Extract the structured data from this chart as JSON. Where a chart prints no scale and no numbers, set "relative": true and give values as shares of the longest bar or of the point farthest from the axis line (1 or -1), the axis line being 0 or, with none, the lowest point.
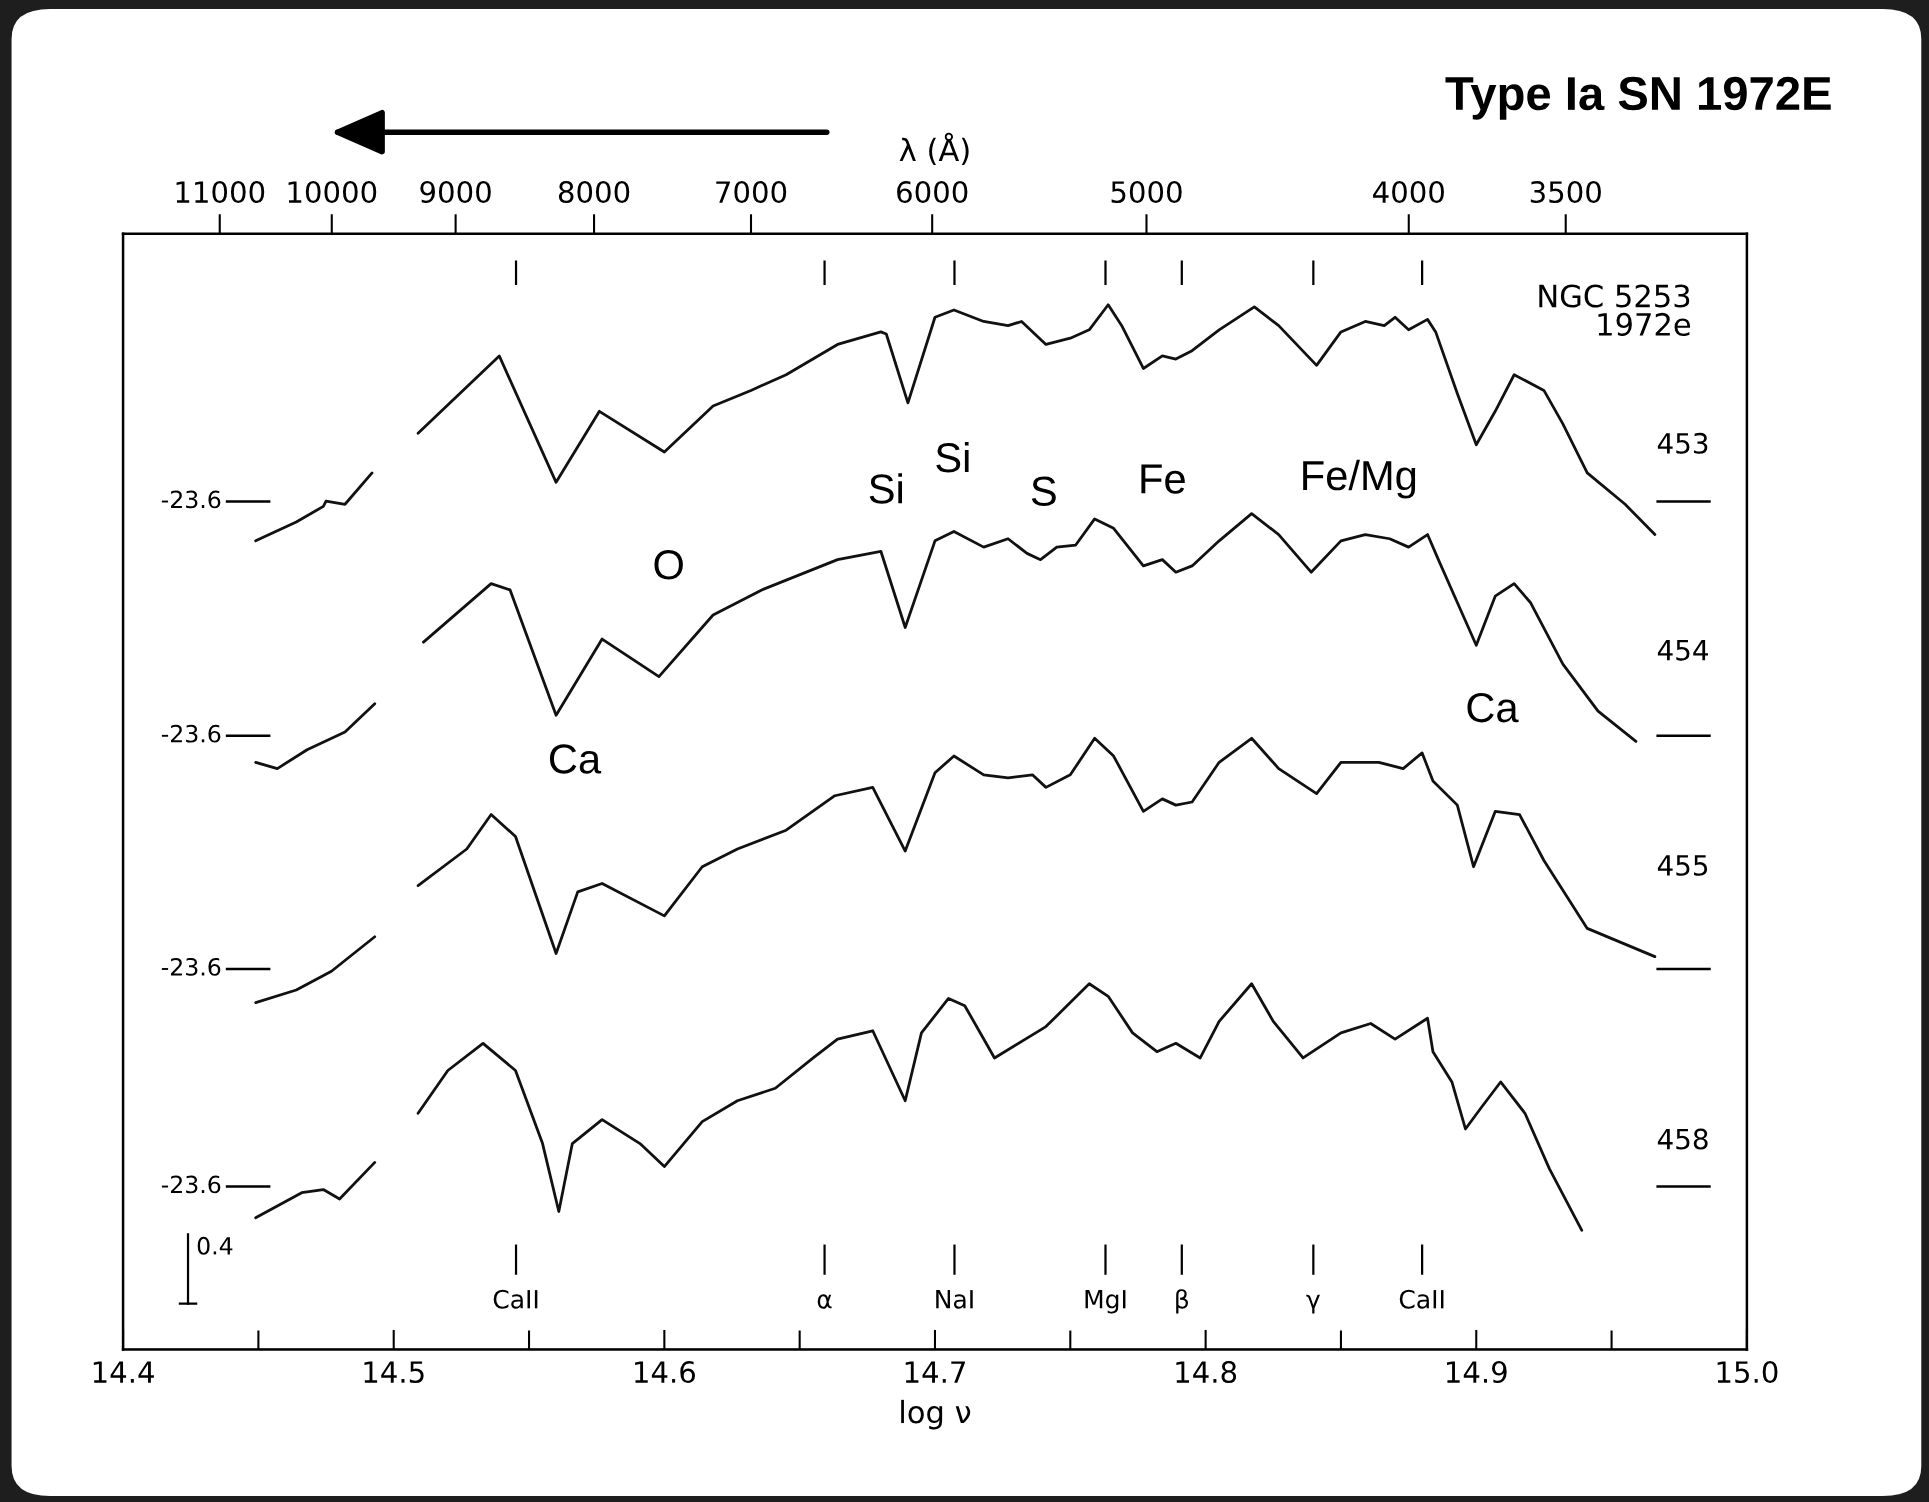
{
  "chart_data": {
    "type": "line",
    "title": "Type Ia SN 1972E",
    "xlabel": "log ν",
    "x2label": "λ (Å)",
    "relative": true,
    "xlim": [
      14.4,
      15.0
    ],
    "xticks": [
      14.4,
      14.5,
      14.6,
      14.7,
      14.8,
      14.9,
      {
        "value": 15.0,
        "label": "15.0"
      }
    ],
    "x2lim": [
      11943,
      3000
    ],
    "log": "x2",
    "x2ticks": [
      11000,
      10000,
      9000,
      8000,
      7000,
      6000,
      5000,
      4000,
      3500
    ],
    "series": [
      {
        "name": "453",
        "color": "#111111",
        "x": [
          14.449,
          14.464,
          14.474,
          14.475,
          14.482,
          14.492,
          14.5,
          14.509,
          14.539,
          14.56,
          14.576,
          14.6,
          14.618,
          14.632,
          14.645,
          14.664,
          14.68,
          14.682,
          14.69,
          14.7,
          14.707,
          14.718,
          14.727,
          14.732,
          14.741,
          14.75,
          14.757,
          14.764,
          14.769,
          14.777,
          14.784,
          14.789,
          14.795,
          14.805,
          14.818,
          14.827,
          14.841,
          14.85,
          14.859,
          14.866,
          14.87,
          14.875,
          14.882,
          14.885,
          14.893,
          14.9,
          14.907,
          14.914,
          14.925,
          14.932,
          14.941,
          14.955,
          14.966
        ],
        "values": [
          0.774,
          0.792,
          0.807,
          0.812,
          0.809,
          0.839,
          null,
          0.877,
          0.951,
          0.83,
          0.898,
          0.859,
          0.903,
          0.918,
          0.933,
          0.962,
          0.974,
          0.972,
          0.906,
          0.988,
          0.995,
          0.984,
          0.98,
          0.984,
          0.962,
          0.968,
          0.976,
          1.0,
          0.98,
          0.939,
          0.951,
          0.948,
          0.956,
          0.976,
          0.998,
          0.98,
          0.942,
          0.974,
          0.984,
          0.98,
          0.988,
          0.976,
          0.986,
          0.974,
          0.915,
          0.866,
          0.898,
          0.933,
          0.918,
          0.886,
          0.839,
          0.809,
          0.78
        ]
      },
      {
        "name": "454",
        "color": "#111111",
        "x": [
          14.449,
          14.457,
          14.468,
          14.482,
          14.493,
          14.5,
          14.511,
          14.536,
          14.543,
          14.56,
          14.577,
          14.598,
          14.618,
          14.636,
          14.664,
          14.68,
          14.689,
          14.7,
          14.707,
          14.718,
          14.727,
          14.734,
          14.739,
          14.745,
          14.752,
          14.759,
          14.766,
          14.777,
          14.784,
          14.789,
          14.795,
          14.805,
          14.817,
          14.827,
          14.839,
          14.85,
          14.859,
          14.868,
          14.875,
          14.882,
          14.886,
          14.893,
          14.9,
          14.907,
          14.914,
          14.92,
          14.932,
          14.945,
          14.959
        ],
        "values": [
          0.562,
          0.556,
          0.574,
          0.591,
          0.618,
          null,
          0.677,
          0.733,
          0.727,
          0.607,
          0.68,
          0.644,
          0.703,
          0.727,
          0.756,
          0.764,
          0.691,
          0.774,
          0.783,
          0.768,
          0.776,
          0.762,
          0.756,
          0.768,
          0.77,
          0.795,
          0.786,
          0.75,
          0.756,
          0.744,
          0.75,
          0.774,
          0.8,
          0.78,
          0.744,
          0.774,
          0.78,
          0.776,
          0.768,
          0.78,
          0.756,
          0.715,
          0.674,
          0.721,
          0.733,
          0.715,
          0.656,
          0.611,
          0.582
        ]
      },
      {
        "name": "455",
        "color": "#111111",
        "x": [
          14.449,
          14.464,
          14.477,
          14.493,
          14.5,
          14.509,
          14.527,
          14.536,
          14.545,
          14.56,
          14.568,
          14.577,
          14.6,
          14.614,
          14.627,
          14.645,
          14.663,
          14.677,
          14.689,
          14.7,
          14.707,
          14.718,
          14.727,
          14.736,
          14.741,
          14.75,
          14.759,
          14.766,
          14.777,
          14.784,
          14.789,
          14.795,
          14.805,
          14.817,
          14.827,
          14.841,
          14.85,
          14.864,
          14.873,
          14.88,
          14.884,
          14.893,
          14.899,
          14.907,
          14.916,
          14.925,
          14.941,
          14.966
        ],
        "values": [
          0.332,
          0.344,
          0.362,
          0.395,
          null,
          0.444,
          0.479,
          0.512,
          0.491,
          0.379,
          0.438,
          0.446,
          0.415,
          0.462,
          0.479,
          0.497,
          0.53,
          0.538,
          0.477,
          0.552,
          0.568,
          0.55,
          0.547,
          0.55,
          0.538,
          0.55,
          0.585,
          0.568,
          0.515,
          0.527,
          0.521,
          0.524,
          0.562,
          0.585,
          0.556,
          0.532,
          0.562,
          0.562,
          0.556,
          0.571,
          0.544,
          0.521,
          0.462,
          0.515,
          0.512,
          0.468,
          0.403,
          0.376
        ]
      },
      {
        "name": "458",
        "color": "#111111",
        "x": [
          14.449,
          14.466,
          14.474,
          14.48,
          14.493,
          14.5,
          14.509,
          14.52,
          14.533,
          14.545,
          14.555,
          14.561,
          14.566,
          14.577,
          14.591,
          14.6,
          14.614,
          14.627,
          14.641,
          14.655,
          14.664,
          14.677,
          14.689,
          14.695,
          14.705,
          14.711,
          14.722,
          14.741,
          14.757,
          14.764,
          14.773,
          14.782,
          14.789,
          14.798,
          14.805,
          14.817,
          14.825,
          14.836,
          14.85,
          14.861,
          14.87,
          14.882,
          14.884,
          14.891,
          14.896,
          14.902,
          14.909,
          14.918,
          14.927,
          14.939
        ],
        "values": [
          0.126,
          0.15,
          0.153,
          0.144,
          0.179,
          null,
          0.226,
          0.267,
          0.293,
          0.267,
          0.197,
          0.132,
          0.197,
          0.22,
          0.197,
          0.175,
          0.218,
          0.238,
          0.25,
          0.279,
          0.297,
          0.305,
          0.238,
          0.303,
          0.336,
          0.329,
          0.279,
          0.309,
          0.35,
          0.338,
          0.303,
          0.285,
          0.293,
          0.279,
          0.314,
          0.35,
          0.314,
          0.279,
          0.303,
          0.312,
          0.297,
          0.317,
          0.285,
          0.256,
          0.211,
          0.232,
          0.256,
          0.226,
          0.173,
          0.114
        ]
      }
    ],
    "annotations": [
      "NGC 5253\n1972e",
      "-23.6",
      "-23.6",
      "-23.6",
      "-23.6",
      "CaII",
      "α",
      "NaI",
      "MgI",
      "β",
      "γ",
      "CaII",
      "0.4",
      "Si",
      "Si",
      "S",
      "Fe",
      "Fe/Mg",
      "O",
      "Ca",
      "Ca"
    ]
  }
}
